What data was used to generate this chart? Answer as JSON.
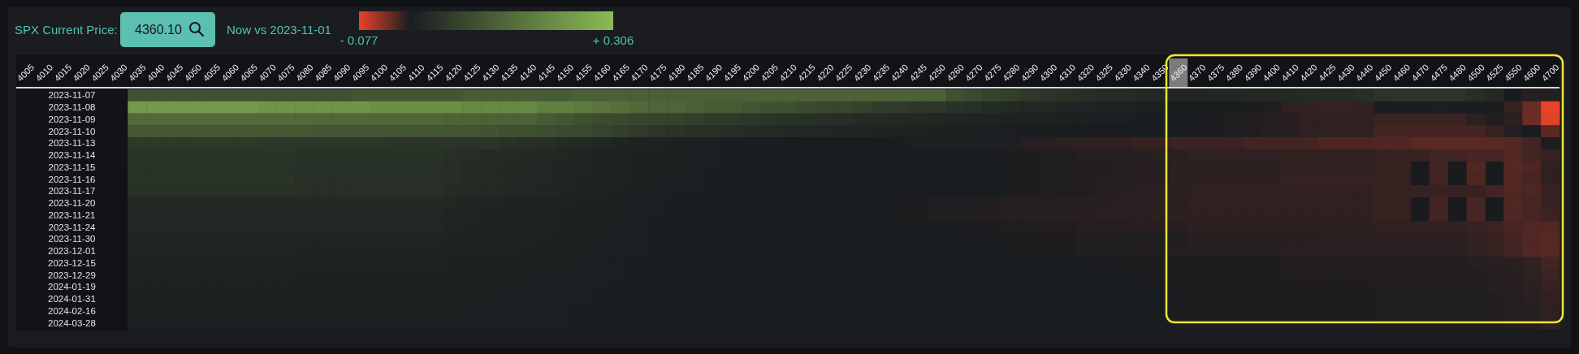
{
  "chart_data": {
    "type": "heatmap",
    "title": "SPX Current Price:",
    "subtitle": "Now vs 2023-11-01",
    "annotations": [
      "4360.10"
    ],
    "categories": [
      "4005",
      "4010",
      "4015",
      "4020",
      "4025",
      "4030",
      "4035",
      "4040",
      "4045",
      "4050",
      "4055",
      "4060",
      "4065",
      "4070",
      "4075",
      "4080",
      "4085",
      "4090",
      "4095",
      "4100",
      "4105",
      "4110",
      "4115",
      "4120",
      "4125",
      "4130",
      "4135",
      "4140",
      "4145",
      "4150",
      "4155",
      "4160",
      "4165",
      "4170",
      "4175",
      "4180",
      "4185",
      "4190",
      "4195",
      "4200",
      "4205",
      "4210",
      "4215",
      "4220",
      "4225",
      "4230",
      "4235",
      "4240",
      "4245",
      "4250",
      "4260",
      "4270",
      "4275",
      "4280",
      "4290",
      "4300",
      "4310",
      "4320",
      "4325",
      "4330",
      "4340",
      "4350",
      "4360",
      "4370",
      "4375",
      "4380",
      "4390",
      "4400",
      "4410",
      "4420",
      "4425",
      "4430",
      "4440",
      "4450",
      "4460",
      "4470",
      "4475",
      "4480",
      "4500",
      "4525",
      "4550",
      "4600",
      "4700"
    ],
    "y_categories": [
      "2023-11-07",
      "2023-11-08",
      "2023-11-09",
      "2023-11-10",
      "2023-11-13",
      "2023-11-14",
      "2023-11-15",
      "2023-11-16",
      "2023-11-17",
      "2023-11-20",
      "2023-11-21",
      "2023-11-24",
      "2023-11-30",
      "2023-12-01",
      "2023-12-15",
      "2023-12-29",
      "2024-01-19",
      "2024-01-31",
      "2024-02-16",
      "2024-03-28"
    ],
    "cells": [
      [
        null,
        null,
        null,
        null,
        null,
        null,
        0.1,
        0.1,
        0.1,
        0.1,
        0.1,
        0.1,
        0.1,
        0.1,
        0.1,
        0.1,
        0.1,
        0.1,
        0.11,
        0.11,
        0.11,
        0.11,
        0.11,
        0.11,
        0.12,
        0.12,
        0.12,
        0.12,
        0.12,
        0.12,
        0.13,
        0.13,
        0.13,
        0.13,
        0.13,
        0.13,
        0.13,
        0.13,
        0.13,
        0.13,
        0.135,
        0.135,
        0.135,
        0.135,
        0.135,
        0.135,
        0.135,
        0.135,
        0.135,
        0.135,
        0.1,
        0.085,
        0.075,
        0.065,
        0.055,
        0.045,
        0.04,
        0.035,
        0.03,
        0.03,
        0.025,
        0.022,
        0.018,
        0.018,
        0.02,
        0.02,
        0.022,
        0.025,
        0.025,
        0.028,
        0.03,
        0.03,
        0.035,
        0.045,
        0.048,
        0.048,
        0.046,
        0.045,
        0.035,
        0.025,
        0,
        -0.004,
        -0.004
      ],
      [
        null,
        null,
        null,
        null,
        null,
        null,
        0.24,
        0.24,
        0.24,
        0.24,
        0.24,
        0.24,
        0.24,
        0.23,
        0.23,
        0.23,
        0.23,
        0.23,
        0.23,
        0.22,
        0.22,
        0.22,
        0.22,
        0.22,
        0.21,
        0.21,
        0.21,
        0.21,
        0.19,
        0.19,
        0.18,
        0.17,
        0.16,
        0.15,
        0.14,
        0.14,
        0.13,
        0.12,
        0.12,
        0.11,
        0.1,
        0.1,
        0.09,
        0.08,
        0.08,
        0.07,
        0.06,
        0.06,
        0.05,
        0.05,
        0.04,
        0.035,
        0.03,
        0.025,
        0.02,
        0.02,
        0.015,
        0.015,
        0.012,
        0.01,
        0.008,
        0.005,
        0.002,
        0.001,
        0,
        0,
        -0.001,
        -0.002,
        -0.008,
        -0.009,
        -0.01,
        -0.01,
        -0.009,
        0,
        0.002,
        0.002,
        0.003,
        0.002,
        0.001,
        -0.001,
        -0.01,
        -0.03,
        -0.077
      ],
      [
        null,
        null,
        null,
        null,
        null,
        null,
        0.15,
        0.15,
        0.15,
        0.15,
        0.15,
        0.15,
        0.15,
        0.15,
        0.15,
        0.15,
        0.145,
        0.145,
        0.145,
        0.145,
        0.145,
        0.145,
        0.145,
        0.135,
        0.135,
        0.135,
        0.135,
        0.135,
        0.12,
        0.11,
        0.1,
        0.09,
        0.085,
        0.08,
        0.075,
        0.07,
        0.065,
        0.06,
        0.055,
        0.05,
        0.045,
        0.04,
        0.038,
        0.035,
        0.032,
        0.03,
        0.028,
        0.025,
        0.022,
        0.02,
        0.018,
        0.015,
        0.013,
        0.012,
        0.01,
        0.008,
        0.006,
        0.005,
        0.004,
        0.003,
        0.002,
        0.001,
        0,
        0,
        -0.001,
        -0.002,
        -0.003,
        -0.004,
        -0.005,
        -0.008,
        -0.008,
        -0.009,
        -0.009,
        -0.012,
        -0.012,
        -0.012,
        -0.012,
        -0.012,
        -0.007,
        -0.002,
        -0.007,
        -0.031,
        -0.074
      ],
      [
        null,
        null,
        null,
        null,
        null,
        null,
        0.115,
        0.115,
        0.115,
        0.115,
        0.115,
        0.115,
        0.115,
        0.115,
        0.115,
        0.115,
        0.11,
        0.11,
        0.11,
        0.11,
        0.11,
        0.11,
        0.11,
        0.11,
        0.11,
        0.105,
        0.1,
        0.1,
        0.095,
        0.09,
        0.085,
        0.075,
        0.065,
        0.058,
        0.05,
        0.045,
        0.04,
        0.036,
        0.033,
        0.03,
        0.027,
        0.024,
        0.021,
        0.019,
        0.017,
        0.015,
        0.013,
        0.011,
        0.01,
        0.008,
        0.006,
        0.005,
        0.004,
        0.003,
        0.002,
        0.001,
        0,
        0,
        0,
        0,
        0,
        0.002,
        0.002,
        -0.001,
        -0.001,
        -0.002,
        -0.003,
        -0.005,
        -0.005,
        -0.008,
        -0.008,
        -0.008,
        -0.008,
        -0.016,
        -0.016,
        -0.016,
        -0.016,
        -0.016,
        -0.016,
        -0.011,
        -0.004,
        0,
        -0.024
      ],
      [
        null,
        null,
        null,
        null,
        null,
        null,
        0.055,
        0.055,
        0.055,
        0.055,
        0.055,
        0.055,
        0.055,
        0.05,
        0.05,
        0.05,
        0.05,
        0.05,
        0.05,
        0.05,
        0.045,
        0.045,
        0.045,
        0.045,
        0.045,
        0.045,
        0.04,
        0.035,
        0.032,
        0.028,
        0.025,
        0.02,
        0.016,
        0.012,
        0.009,
        0.007,
        0.005,
        0.004,
        0.003,
        0.002,
        0.001,
        0,
        0,
        0,
        0,
        0,
        0,
        -0.001,
        -0.002,
        -0.002,
        -0.002,
        -0.002,
        -0.002,
        -0.002,
        -0.005,
        -0.006,
        -0.007,
        -0.008,
        -0.008,
        -0.008,
        -0.01,
        -0.01,
        -0.012,
        -0.012,
        -0.012,
        -0.012,
        -0.015,
        -0.015,
        -0.015,
        -0.015,
        -0.019,
        -0.019,
        -0.019,
        -0.021,
        -0.021,
        -0.024,
        -0.024,
        -0.024,
        -0.024,
        -0.024,
        -0.022,
        -0.015,
        -0.001
      ],
      [
        null,
        null,
        null,
        null,
        null,
        null,
        0.045,
        0.045,
        0.045,
        0.045,
        0.045,
        0.045,
        0.045,
        0.045,
        0.045,
        0.04,
        0.04,
        0.04,
        0.04,
        0.04,
        0.04,
        0.04,
        0.04,
        0.035,
        0.033,
        0.03,
        0.028,
        0.025,
        0.022,
        0.02,
        0.016,
        0.013,
        0.01,
        0.008,
        0.006,
        0.005,
        0.004,
        0.003,
        0.002,
        0.002,
        0.001,
        0.001,
        0,
        0,
        0,
        0,
        0,
        0,
        0,
        0,
        0,
        0,
        0,
        -0.001,
        -0.001,
        -0.002,
        -0.003,
        -0.004,
        -0.004,
        -0.005,
        -0.005,
        -0.006,
        -0.006,
        -0.008,
        -0.008,
        -0.008,
        -0.008,
        -0.008,
        -0.009,
        -0.009,
        -0.009,
        -0.009,
        -0.009,
        -0.011,
        -0.011,
        -0.011,
        -0.015,
        -0.015,
        -0.017,
        -0.017,
        -0.02,
        -0.015,
        -0.01
      ],
      [
        null,
        null,
        null,
        null,
        null,
        null,
        0.043,
        0.043,
        0.043,
        0.043,
        0.043,
        0.043,
        0.043,
        0.043,
        0.043,
        0.038,
        0.038,
        0.038,
        0.038,
        0.038,
        0.038,
        0.038,
        0.038,
        0.033,
        0.03,
        0.028,
        0.025,
        0.022,
        0.02,
        0.018,
        0.015,
        0.012,
        0.01,
        0.008,
        0.006,
        0.005,
        0.004,
        0.003,
        0.002,
        0.001,
        0.001,
        0,
        0,
        0,
        0,
        0,
        0,
        0,
        0,
        0,
        0,
        0,
        0,
        -0.001,
        -0.001,
        -0.002,
        -0.002,
        -0.003,
        -0.003,
        -0.004,
        -0.005,
        -0.005,
        -0.007,
        -0.007,
        -0.007,
        -0.007,
        -0.007,
        -0.007,
        -0.009,
        -0.009,
        -0.009,
        -0.009,
        -0.009,
        -0.011,
        -0.011,
        null,
        -0.015,
        null,
        -0.02,
        null,
        -0.023,
        -0.019,
        -0.008
      ],
      [
        null,
        null,
        null,
        null,
        null,
        null,
        0.042,
        0.042,
        0.042,
        0.042,
        0.042,
        0.042,
        0.042,
        0.042,
        0.042,
        0.037,
        0.037,
        0.037,
        0.037,
        0.037,
        0.037,
        0.037,
        0.037,
        0.032,
        0.03,
        0.027,
        0.024,
        0.021,
        0.019,
        0.017,
        0.014,
        0.011,
        0.009,
        0.007,
        0.005,
        0.004,
        0.003,
        0.002,
        0.002,
        0.001,
        0.001,
        0,
        0,
        0,
        0,
        0,
        0,
        0,
        0,
        0,
        0,
        0,
        0,
        -0.001,
        -0.001,
        -0.002,
        -0.002,
        -0.003,
        -0.004,
        -0.004,
        -0.005,
        -0.005,
        -0.007,
        -0.007,
        -0.007,
        -0.007,
        -0.007,
        -0.007,
        -0.01,
        -0.01,
        -0.01,
        -0.01,
        -0.01,
        -0.011,
        -0.011,
        null,
        -0.015,
        null,
        -0.019,
        null,
        -0.022,
        -0.017,
        -0.008
      ],
      [
        null,
        null,
        null,
        null,
        null,
        null,
        0.04,
        0.04,
        0.04,
        0.04,
        0.04,
        0.04,
        0.04,
        0.04,
        0.04,
        0.035,
        0.035,
        0.035,
        0.035,
        0.035,
        0.035,
        0.035,
        0.035,
        0.03,
        0.028,
        0.025,
        0.022,
        0.02,
        0.018,
        0.016,
        0.013,
        0.01,
        0.008,
        0.006,
        0.005,
        0.004,
        0.003,
        0.002,
        0.001,
        0.001,
        0,
        0,
        0,
        0,
        0,
        0,
        0,
        0,
        0,
        0,
        0,
        0,
        0,
        -0.001,
        -0.001,
        -0.002,
        -0.003,
        -0.003,
        -0.004,
        -0.005,
        -0.006,
        -0.007,
        -0.007,
        -0.008,
        -0.008,
        -0.008,
        -0.008,
        -0.008,
        -0.008,
        -0.008,
        -0.008,
        -0.008,
        -0.008,
        -0.011,
        -0.011,
        -0.011,
        -0.011,
        -0.011,
        -0.011,
        -0.015,
        -0.02,
        -0.019,
        -0.011
      ],
      [
        null,
        null,
        null,
        null,
        null,
        null,
        0.025,
        0.025,
        0.025,
        0.025,
        0.025,
        0.025,
        0.025,
        0.025,
        0.025,
        0.022,
        0.022,
        0.022,
        0.022,
        0.022,
        0.022,
        0.022,
        0.022,
        0.019,
        0.017,
        0.015,
        0.013,
        0.011,
        0.01,
        0.009,
        0.008,
        0.006,
        0.005,
        0.004,
        0.003,
        0.002,
        0.002,
        0.001,
        0.001,
        0,
        0,
        0,
        0,
        0,
        0,
        0,
        0,
        -0.001,
        -0.001,
        -0.002,
        -0.002,
        -0.002,
        -0.003,
        -0.004,
        -0.004,
        -0.004,
        -0.005,
        -0.005,
        -0.005,
        -0.006,
        -0.006,
        -0.006,
        -0.006,
        -0.008,
        -0.008,
        -0.008,
        -0.008,
        -0.008,
        -0.008,
        -0.008,
        -0.008,
        -0.008,
        -0.008,
        -0.011,
        -0.011,
        null,
        -0.015,
        null,
        -0.017,
        null,
        -0.02,
        -0.017,
        -0.011
      ],
      [
        null,
        null,
        null,
        null,
        null,
        null,
        0.024,
        0.024,
        0.024,
        0.024,
        0.024,
        0.024,
        0.024,
        0.024,
        0.024,
        0.021,
        0.021,
        0.021,
        0.021,
        0.021,
        0.021,
        0.021,
        0.021,
        0.018,
        0.016,
        0.014,
        0.012,
        0.01,
        0.009,
        0.008,
        0.007,
        0.006,
        0.005,
        0.004,
        0.003,
        0.002,
        0.002,
        0.001,
        0.001,
        0,
        0,
        0,
        0,
        0,
        0,
        0,
        0,
        -0.001,
        -0.001,
        -0.002,
        -0.002,
        -0.003,
        -0.003,
        -0.004,
        -0.004,
        -0.005,
        -0.005,
        -0.005,
        -0.006,
        -0.006,
        -0.006,
        -0.007,
        -0.007,
        -0.008,
        -0.008,
        -0.008,
        -0.008,
        -0.008,
        -0.008,
        -0.008,
        -0.008,
        -0.008,
        -0.008,
        -0.011,
        -0.011,
        null,
        -0.015,
        null,
        -0.017,
        null,
        -0.02,
        -0.017,
        -0.012
      ],
      [
        null,
        null,
        null,
        null,
        null,
        null,
        0.022,
        0.022,
        0.022,
        0.022,
        0.022,
        0.022,
        0.022,
        0.022,
        0.022,
        0.019,
        0.019,
        0.019,
        0.019,
        0.019,
        0.019,
        0.019,
        0.019,
        0.016,
        0.014,
        0.012,
        0.011,
        0.01,
        0.009,
        0.008,
        0.006,
        0.005,
        0.004,
        0.003,
        0.002,
        0.002,
        0.001,
        0.001,
        0,
        0,
        0,
        0,
        0,
        0,
        0,
        0,
        0,
        0,
        0,
        0,
        0,
        -0.001,
        -0.001,
        -0.002,
        -0.002,
        -0.003,
        -0.003,
        -0.004,
        -0.004,
        -0.004,
        -0.005,
        -0.005,
        -0.005,
        -0.007,
        -0.007,
        -0.007,
        -0.007,
        -0.007,
        -0.007,
        -0.007,
        -0.007,
        -0.007,
        -0.007,
        -0.009,
        -0.009,
        -0.009,
        -0.009,
        -0.009,
        -0.011,
        -0.012,
        -0.017,
        -0.02,
        -0.02
      ],
      [
        null,
        null,
        null,
        null,
        null,
        null,
        0.017,
        0.017,
        0.017,
        0.017,
        0.017,
        0.017,
        0.017,
        0.017,
        0.017,
        0.015,
        0.015,
        0.015,
        0.015,
        0.015,
        0.015,
        0.015,
        0.015,
        0.013,
        0.012,
        0.011,
        0.01,
        0.009,
        0.008,
        0.007,
        0.006,
        0.005,
        0.004,
        0.003,
        0.002,
        0.002,
        0.001,
        0.001,
        0,
        0,
        0,
        0,
        0,
        0,
        0,
        0,
        0,
        0,
        0,
        0,
        0,
        0,
        0,
        -0.001,
        -0.001,
        -0.001,
        -0.001,
        -0.002,
        -0.002,
        -0.002,
        -0.002,
        -0.002,
        -0.002,
        -0.005,
        -0.005,
        -0.005,
        -0.005,
        -0.005,
        -0.005,
        -0.005,
        -0.006,
        -0.006,
        -0.006,
        -0.006,
        -0.006,
        -0.006,
        -0.006,
        -0.006,
        -0.009,
        -0.011,
        -0.015,
        -0.02,
        -0.023
      ],
      [
        null,
        null,
        null,
        null,
        null,
        null,
        0.016,
        0.016,
        0.016,
        0.016,
        0.016,
        0.016,
        0.016,
        0.016,
        0.016,
        0.014,
        0.014,
        0.014,
        0.014,
        0.014,
        0.014,
        0.014,
        0.014,
        0.012,
        0.011,
        0.01,
        0.009,
        0.008,
        0.007,
        0.006,
        0.005,
        0.004,
        0.004,
        0.003,
        0.002,
        0.002,
        0.001,
        0.001,
        0,
        0,
        0,
        0,
        0,
        0,
        0,
        0,
        0,
        0,
        0,
        0,
        0,
        0,
        0,
        -0.001,
        -0.001,
        -0.001,
        -0.001,
        -0.002,
        -0.002,
        -0.002,
        -0.003,
        -0.003,
        -0.004,
        -0.004,
        -0.004,
        -0.004,
        -0.004,
        -0.004,
        -0.006,
        -0.006,
        -0.006,
        -0.006,
        -0.006,
        -0.006,
        -0.006,
        -0.006,
        -0.006,
        -0.006,
        -0.009,
        -0.011,
        -0.014,
        -0.02,
        -0.023
      ],
      [
        null,
        null,
        null,
        null,
        null,
        null,
        0.01,
        0.01,
        0.01,
        0.01,
        0.01,
        0.01,
        0.01,
        0.01,
        0.01,
        0.009,
        0.009,
        0.009,
        0.009,
        0.009,
        0.009,
        0.009,
        0.009,
        0.008,
        0.007,
        0.007,
        0.006,
        0.006,
        0.005,
        0.005,
        0.004,
        0.003,
        0.003,
        0.002,
        0.002,
        0.001,
        0.001,
        0.001,
        0,
        0,
        0,
        0,
        0,
        0,
        0,
        0,
        0,
        0,
        0,
        0,
        0,
        0,
        0,
        0,
        0,
        0,
        0,
        0,
        -0.001,
        -0.001,
        -0.001,
        -0.001,
        -0.001,
        -0.001,
        -0.001,
        -0.001,
        -0.001,
        -0.001,
        -0.003,
        -0.003,
        -0.003,
        -0.003,
        -0.003,
        -0.003,
        -0.003,
        -0.003,
        -0.003,
        -0.003,
        -0.004,
        -0.005,
        -0.006,
        -0.009,
        -0.015
      ],
      [
        null,
        null,
        null,
        null,
        null,
        null,
        0.009,
        0.009,
        0.009,
        0.009,
        0.009,
        0.009,
        0.009,
        0.009,
        0.009,
        0.008,
        0.008,
        0.008,
        0.008,
        0.008,
        0.008,
        0.008,
        0.008,
        0.007,
        0.007,
        0.006,
        0.006,
        0.005,
        0.005,
        0.004,
        0.004,
        0.003,
        0.003,
        0.002,
        0.002,
        0.001,
        0.001,
        0.001,
        0,
        0,
        0,
        0,
        0,
        0,
        0,
        0,
        0,
        0,
        0,
        0,
        0,
        0,
        0,
        0,
        0,
        0,
        0,
        0,
        0,
        0,
        -0.001,
        -0.001,
        -0.001,
        -0.001,
        -0.001,
        -0.001,
        -0.001,
        -0.001,
        -0.003,
        -0.003,
        -0.003,
        -0.003,
        -0.003,
        -0.003,
        -0.003,
        -0.003,
        -0.003,
        -0.003,
        -0.003,
        -0.004,
        -0.005,
        -0.008,
        -0.013
      ],
      [
        null,
        null,
        null,
        null,
        null,
        null,
        0.008,
        0.008,
        0.008,
        0.008,
        0.008,
        0.008,
        0.008,
        0.008,
        0.008,
        0.007,
        0.007,
        0.007,
        0.007,
        0.007,
        0.007,
        0.007,
        0.007,
        0.006,
        0.006,
        0.005,
        0.005,
        0.004,
        0.004,
        0.004,
        0.003,
        0.003,
        0.002,
        0.002,
        0.002,
        0.001,
        0.001,
        0.001,
        0,
        0,
        0,
        0,
        0,
        0,
        0,
        0,
        0,
        0,
        0,
        0,
        0,
        0,
        0,
        0,
        0,
        0,
        0,
        0,
        0,
        0,
        0,
        0,
        -0.001,
        -0.001,
        -0.001,
        -0.001,
        -0.001,
        -0.001,
        -0.001,
        -0.001,
        -0.001,
        -0.001,
        -0.001,
        -0.003,
        -0.003,
        -0.003,
        -0.003,
        -0.003,
        -0.003,
        -0.004,
        -0.005,
        -0.007,
        -0.01
      ],
      [
        null,
        null,
        null,
        null,
        null,
        null,
        0.007,
        0.007,
        0.007,
        0.007,
        0.007,
        0.007,
        0.007,
        0.007,
        0.007,
        0.006,
        0.006,
        0.006,
        0.006,
        0.006,
        0.006,
        0.006,
        0.006,
        0.005,
        0.005,
        0.005,
        0.004,
        0.004,
        0.004,
        0.003,
        0.003,
        0.002,
        0.002,
        0.002,
        0.001,
        0.001,
        0.001,
        0,
        0,
        0,
        0,
        0,
        0,
        0,
        0,
        0,
        0,
        0,
        0,
        0,
        0,
        0,
        0,
        0,
        0,
        0,
        0,
        0,
        0,
        0,
        0,
        0,
        -0.001,
        -0.001,
        -0.001,
        -0.001,
        -0.001,
        -0.001,
        -0.001,
        -0.001,
        -0.001,
        -0.001,
        -0.001,
        -0.002,
        -0.002,
        -0.002,
        -0.002,
        -0.002,
        -0.002,
        -0.003,
        -0.004,
        -0.006,
        -0.009
      ],
      [
        null,
        null,
        null,
        null,
        null,
        null,
        0.006,
        0.006,
        0.006,
        0.006,
        0.006,
        0.006,
        0.006,
        0.006,
        0.006,
        0.005,
        0.005,
        0.005,
        0.005,
        0.005,
        0.005,
        0.005,
        0.005,
        0.005,
        0.004,
        0.004,
        0.004,
        0.003,
        0.003,
        0.003,
        0.002,
        0.002,
        0.002,
        0.001,
        0.001,
        0.001,
        0,
        0,
        0,
        0,
        0,
        0,
        0,
        0,
        0,
        0,
        0,
        0,
        0,
        0,
        0,
        0,
        0,
        0,
        0,
        0,
        0,
        0,
        0,
        0,
        0,
        0,
        -0.001,
        -0.001,
        -0.001,
        -0.001,
        -0.001,
        -0.001,
        -0.001,
        -0.001,
        -0.001,
        -0.001,
        -0.001,
        -0.002,
        -0.002,
        -0.002,
        -0.002,
        -0.002,
        -0.002,
        -0.003,
        -0.004,
        -0.005,
        -0.008
      ],
      [
        null,
        null,
        null,
        null,
        null,
        null,
        0.005,
        0.005,
        0.005,
        0.005,
        0.005,
        0.005,
        0.005,
        0.005,
        0.005,
        0.005,
        0.005,
        0.005,
        0.005,
        0.005,
        0.005,
        0.005,
        0.005,
        0.004,
        0.004,
        0.004,
        0.004,
        0.003,
        0.003,
        0.003,
        0.002,
        0.002,
        0.002,
        0.001,
        0.001,
        0.001,
        0,
        0,
        0,
        0,
        0,
        0,
        0,
        0,
        0,
        0,
        0,
        0,
        0,
        0,
        0,
        0,
        0,
        0,
        0,
        0,
        0,
        0,
        0,
        0,
        0,
        0,
        -0.001,
        -0.001,
        -0.001,
        -0.001,
        -0.001,
        -0.001,
        -0.001,
        -0.001,
        -0.001,
        -0.001,
        -0.001,
        -0.002,
        -0.002,
        -0.002,
        -0.002,
        -0.002,
        -0.002,
        -0.003,
        -0.004,
        -0.005,
        -0.008
      ]
    ],
    "clim": [
      -0.077,
      0.306
    ],
    "cticks": [
      {
        "value": -0.077,
        "label": "- 0.077"
      },
      {
        "value": 0.306,
        "label": "+ 0.306"
      }
    ]
  }
}
